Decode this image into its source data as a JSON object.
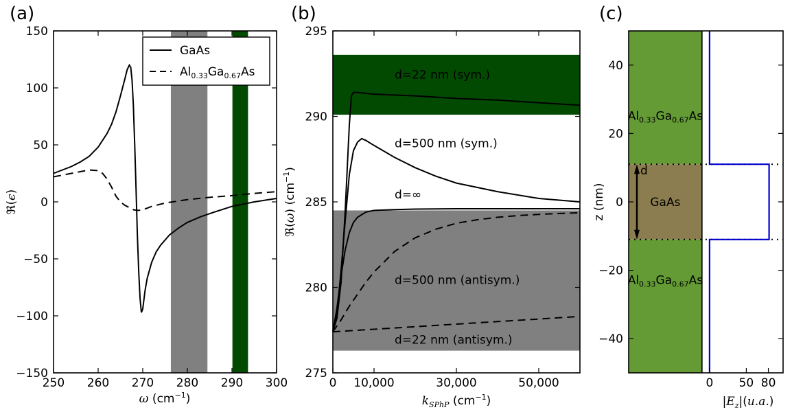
{
  "panel_labels": {
    "a": "(a)",
    "b": "(b)",
    "c": "(c)"
  },
  "chart_data": [
    {
      "type": "line",
      "panel": "(a)",
      "title": "",
      "xlabel": "ω (cm⁻¹)",
      "ylabel": "ℜ(ε)",
      "xlim": [
        250,
        300
      ],
      "ylim": [
        -150,
        150
      ],
      "xticks": [
        250,
        260,
        270,
        280,
        290,
        300
      ],
      "yticks": [
        -150,
        -100,
        -50,
        0,
        50,
        100,
        150
      ],
      "legend_position": "top-right",
      "shaded_bands": [
        {
          "x": [
            276.3,
            284.5
          ],
          "color": "#808080"
        },
        {
          "x": [
            290.1,
            293.6
          ],
          "color": "#024a02"
        }
      ],
      "series": [
        {
          "name": "GaAs",
          "style": "solid",
          "x": [
            250,
            252,
            254,
            256,
            258,
            260,
            262,
            263,
            264,
            265,
            266,
            266.5,
            267,
            267.3,
            267.6,
            267.9,
            268.2,
            268.5,
            268.8,
            269.1,
            269.4,
            269.7,
            270,
            270.5,
            271,
            272,
            273,
            274,
            276,
            278,
            280,
            283,
            286,
            290,
            295,
            300
          ],
          "y": [
            25,
            28,
            31,
            35,
            40,
            48,
            60,
            68,
            79,
            93,
            108,
            116,
            120,
            118,
            107,
            85,
            50,
            10,
            -30,
            -62,
            -85,
            -97,
            -94,
            -78,
            -67,
            -53,
            -44,
            -38,
            -29,
            -23,
            -18,
            -13,
            -9,
            -4,
            0,
            3
          ]
        },
        {
          "name": "Al0.33Ga0.67As",
          "style": "dashed",
          "x": [
            250,
            252,
            254,
            256,
            258,
            260,
            261,
            262,
            263,
            264,
            265,
            266,
            267,
            268,
            269,
            270,
            272,
            275,
            280,
            285,
            290,
            295,
            300
          ],
          "y": [
            22,
            23.5,
            25,
            26.5,
            28,
            27.5,
            25,
            20,
            13,
            5,
            0,
            -3,
            -5,
            -7,
            -7.5,
            -7,
            -4,
            -1,
            2,
            4,
            5.5,
            7.5,
            9
          ]
        }
      ]
    },
    {
      "type": "line",
      "panel": "(b)",
      "title": "",
      "xlabel": "k_SPhP (cm⁻¹)",
      "ylabel": "ℜ(ω) (cm⁻¹)",
      "xlim": [
        0,
        60000
      ],
      "ylim": [
        275,
        295
      ],
      "xticks": [
        0,
        10000,
        30000,
        50000
      ],
      "xtick_labels": [
        "0",
        "10,000",
        "30,000",
        "50,000"
      ],
      "yticks": [
        275,
        280,
        285,
        290,
        295
      ],
      "shaded_bands": [
        {
          "y": [
            276.3,
            284.5
          ],
          "color": "#808080"
        },
        {
          "y": [
            290.1,
            293.6
          ],
          "color": "#024a02"
        }
      ],
      "annotations": [
        {
          "text": "d=22 nm (sym.)",
          "x": 15000,
          "y": 292.2
        },
        {
          "text": "d=500 nm (sym.)",
          "x": 15000,
          "y": 288.2
        },
        {
          "text": "d=∞",
          "x": 15000,
          "y": 285.2
        },
        {
          "text": "d=500 nm (antisym.)",
          "x": 15000,
          "y": 280.2
        },
        {
          "text": "d=22 nm (antisym.)",
          "x": 15000,
          "y": 276.7
        }
      ],
      "series": [
        {
          "style": "solid",
          "x": [
            0,
            1000,
            2000,
            3000,
            4000,
            4500,
            5000,
            6000,
            8000,
            10000,
            20000,
            30000,
            40000,
            50000,
            60000
          ],
          "y": [
            277.4,
            278.2,
            280.3,
            284.5,
            289.5,
            291.2,
            291.4,
            291.4,
            291.35,
            291.3,
            291.2,
            291.05,
            290.95,
            290.8,
            290.65
          ]
        },
        {
          "style": "solid",
          "x": [
            0,
            1000,
            2000,
            3000,
            4000,
            5000,
            6000,
            7000,
            8000,
            10000,
            15000,
            20000,
            25000,
            30000,
            40000,
            50000,
            60000
          ],
          "y": [
            277.4,
            278.5,
            281,
            283.9,
            286.6,
            288,
            288.5,
            288.7,
            288.6,
            288.3,
            287.6,
            287,
            286.5,
            286.1,
            285.6,
            285.2,
            285.0
          ]
        },
        {
          "style": "solid",
          "x": [
            0,
            1000,
            2000,
            3000,
            4000,
            5000,
            6000,
            8000,
            10000,
            15000,
            20000,
            30000,
            40000,
            50000,
            60000
          ],
          "y": [
            277.4,
            278.8,
            280.7,
            282.2,
            283.2,
            283.8,
            284.1,
            284.4,
            284.5,
            284.55,
            284.58,
            284.6,
            284.6,
            284.6,
            284.6
          ]
        },
        {
          "style": "dashed",
          "x": [
            0,
            2000,
            4000,
            6000,
            8000,
            10000,
            15000,
            20000,
            25000,
            30000,
            35000,
            40000,
            45000,
            50000,
            55000,
            60000
          ],
          "y": [
            277.4,
            278.1,
            278.9,
            279.6,
            280.3,
            280.9,
            282.1,
            282.9,
            283.4,
            283.75,
            283.95,
            284.1,
            284.2,
            284.27,
            284.32,
            284.36
          ]
        },
        {
          "style": "dashed",
          "x": [
            0,
            10000,
            20000,
            30000,
            40000,
            50000,
            60000
          ],
          "y": [
            277.4,
            277.55,
            277.7,
            277.85,
            278.0,
            278.15,
            278.3
          ]
        }
      ]
    },
    {
      "type": "line",
      "panel": "(c)",
      "title": "",
      "xlabel": "|E_z|(u.a.)",
      "ylabel": "z (nm)",
      "ylim": [
        -50,
        50
      ],
      "xlim": [
        -110,
        100
      ],
      "xticks": [
        0,
        50,
        80
      ],
      "yticks": [
        -40,
        -20,
        0,
        20,
        40
      ],
      "layers": [
        {
          "label": "Al0.33Ga0.67As",
          "z": [
            11,
            50
          ],
          "color": "#649b35"
        },
        {
          "label": "GaAs",
          "z": [
            -11,
            11
          ],
          "color": "#8b7d4f"
        },
        {
          "label": "Al0.33Ga0.67As",
          "z": [
            -50,
            -11
          ],
          "color": "#649b35"
        }
      ],
      "thickness_label": "d",
      "series": [
        {
          "style": "solid",
          "color": "#0000cc",
          "x": [
            0,
            0,
            81,
            81,
            0,
            0
          ],
          "y": [
            50,
            11,
            11,
            -11,
            -11,
            -50
          ]
        }
      ]
    }
  ],
  "legend": {
    "gaas": "GaAs",
    "algaas_main": "Al",
    "algaas_sub1": "0.33",
    "algaas_mid": "Ga",
    "algaas_sub2": "0.67",
    "algaas_end": "As"
  },
  "layer_labels": {
    "gaas": "GaAs",
    "d": "d"
  },
  "colors": {
    "gray_band": "#808080",
    "green_band": "#024a02",
    "algaas_layer": "#649b35",
    "gaas_layer": "#8b7d4f",
    "field_line": "#0000cc"
  }
}
